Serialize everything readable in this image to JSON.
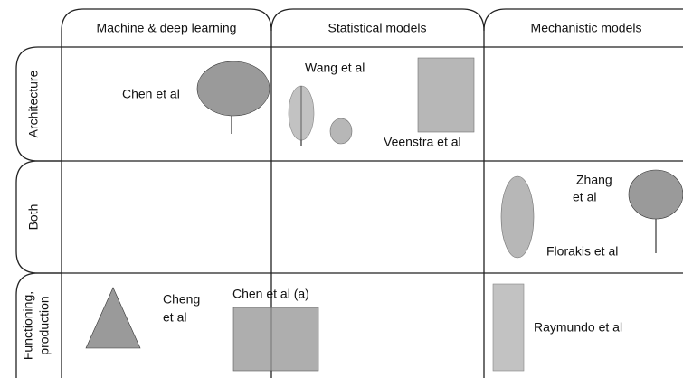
{
  "columns": [
    "Machine & deep learning",
    "Statistical models",
    "Mechanistic models"
  ],
  "rows": [
    [
      "Architecture"
    ],
    [
      "Both"
    ],
    [
      "Functioning,",
      "production"
    ]
  ],
  "cells": {
    "ml_architecture": [
      "Chen et al"
    ],
    "stat_architecture_top": [
      "Wang et al"
    ],
    "stat_architecture_bottom": [
      "Veenstra et al"
    ],
    "mech_both_top": [
      "Zhang",
      "et al"
    ],
    "mech_both_bottom": [
      "Florakis et al"
    ],
    "ml_functioning": [
      "Cheng",
      "et al"
    ],
    "stat_functioning": [
      "Chen et al (a)"
    ],
    "mech_functioning": [
      "Raymundo et al"
    ]
  }
}
